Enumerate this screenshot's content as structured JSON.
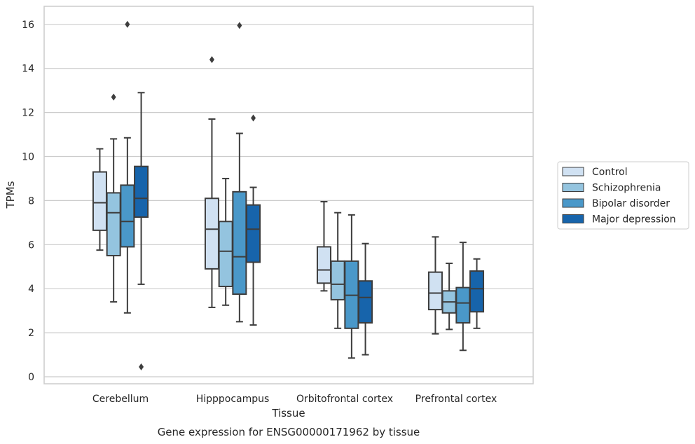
{
  "chart_data": {
    "type": "box",
    "title": "",
    "caption": "Gene expression for ENSG00000171962 by tissue",
    "xlabel": "Tissue",
    "ylabel": "TPMs",
    "ylim": [
      -0.3,
      16.8
    ],
    "yticks": [
      0,
      2,
      4,
      6,
      8,
      10,
      12,
      14,
      16
    ],
    "ytick_labels": [
      "0",
      "2",
      "4",
      "6",
      "8",
      "10",
      "12",
      "14",
      "16"
    ],
    "grid": "horizontal",
    "legend_position": "right",
    "categories": [
      "Cerebellum",
      "Hipppocampus",
      "Orbitofrontal cortex",
      "Prefrontal cortex"
    ],
    "series": [
      {
        "name": "Control",
        "color": "#d0e1f2",
        "boxes": [
          {
            "whisker_low": 5.75,
            "q1": 6.65,
            "median": 7.9,
            "q3": 9.3,
            "whisker_high": 10.35,
            "outliers": []
          },
          {
            "whisker_low": 3.15,
            "q1": 4.9,
            "median": 6.7,
            "q3": 8.1,
            "whisker_high": 11.7,
            "outliers": [
              14.4
            ]
          },
          {
            "whisker_low": 3.9,
            "q1": 4.25,
            "median": 4.85,
            "q3": 5.9,
            "whisker_high": 7.95,
            "outliers": []
          },
          {
            "whisker_low": 1.95,
            "q1": 3.05,
            "median": 3.8,
            "q3": 4.75,
            "whisker_high": 6.35,
            "outliers": []
          }
        ]
      },
      {
        "name": "Schizophrenia",
        "color": "#94c4df",
        "boxes": [
          {
            "whisker_low": 3.4,
            "q1": 5.5,
            "median": 7.45,
            "q3": 8.35,
            "whisker_high": 10.8,
            "outliers": [
              12.7
            ]
          },
          {
            "whisker_low": 3.25,
            "q1": 4.1,
            "median": 5.7,
            "q3": 7.05,
            "whisker_high": 9.0,
            "outliers": []
          },
          {
            "whisker_low": 2.2,
            "q1": 3.5,
            "median": 4.2,
            "q3": 5.25,
            "whisker_high": 7.45,
            "outliers": []
          },
          {
            "whisker_low": 2.15,
            "q1": 2.9,
            "median": 3.4,
            "q3": 3.9,
            "whisker_high": 5.15,
            "outliers": []
          }
        ]
      },
      {
        "name": "Bipolar disorder",
        "color": "#4a98c9",
        "boxes": [
          {
            "whisker_low": 2.9,
            "q1": 5.9,
            "median": 7.05,
            "q3": 8.7,
            "whisker_high": 10.85,
            "outliers": [
              16.0
            ]
          },
          {
            "whisker_low": 2.5,
            "q1": 3.75,
            "median": 5.45,
            "q3": 8.4,
            "whisker_high": 11.05,
            "outliers": [
              15.95
            ]
          },
          {
            "whisker_low": 0.85,
            "q1": 2.2,
            "median": 3.7,
            "q3": 5.25,
            "whisker_high": 7.35,
            "outliers": []
          },
          {
            "whisker_low": 1.2,
            "q1": 2.45,
            "median": 3.35,
            "q3": 4.05,
            "whisker_high": 6.1,
            "outliers": []
          }
        ]
      },
      {
        "name": "Major depression",
        "color": "#1764ab",
        "boxes": [
          {
            "whisker_low": 4.2,
            "q1": 7.25,
            "median": 8.1,
            "q3": 9.55,
            "whisker_high": 12.9,
            "outliers": [
              0.45
            ]
          },
          {
            "whisker_low": 2.35,
            "q1": 5.2,
            "median": 6.7,
            "q3": 7.8,
            "whisker_high": 8.6,
            "outliers": [
              11.75
            ]
          },
          {
            "whisker_low": 1.0,
            "q1": 2.45,
            "median": 3.6,
            "q3": 4.35,
            "whisker_high": 6.05,
            "outliers": []
          },
          {
            "whisker_low": 2.2,
            "q1": 2.95,
            "median": 4.0,
            "q3": 4.8,
            "whisker_high": 5.35,
            "outliers": []
          }
        ]
      }
    ]
  },
  "colors": {
    "grid": "#cccccc",
    "frame": "#cccccc",
    "line": "#3d3d3d",
    "text": "#262626"
  }
}
